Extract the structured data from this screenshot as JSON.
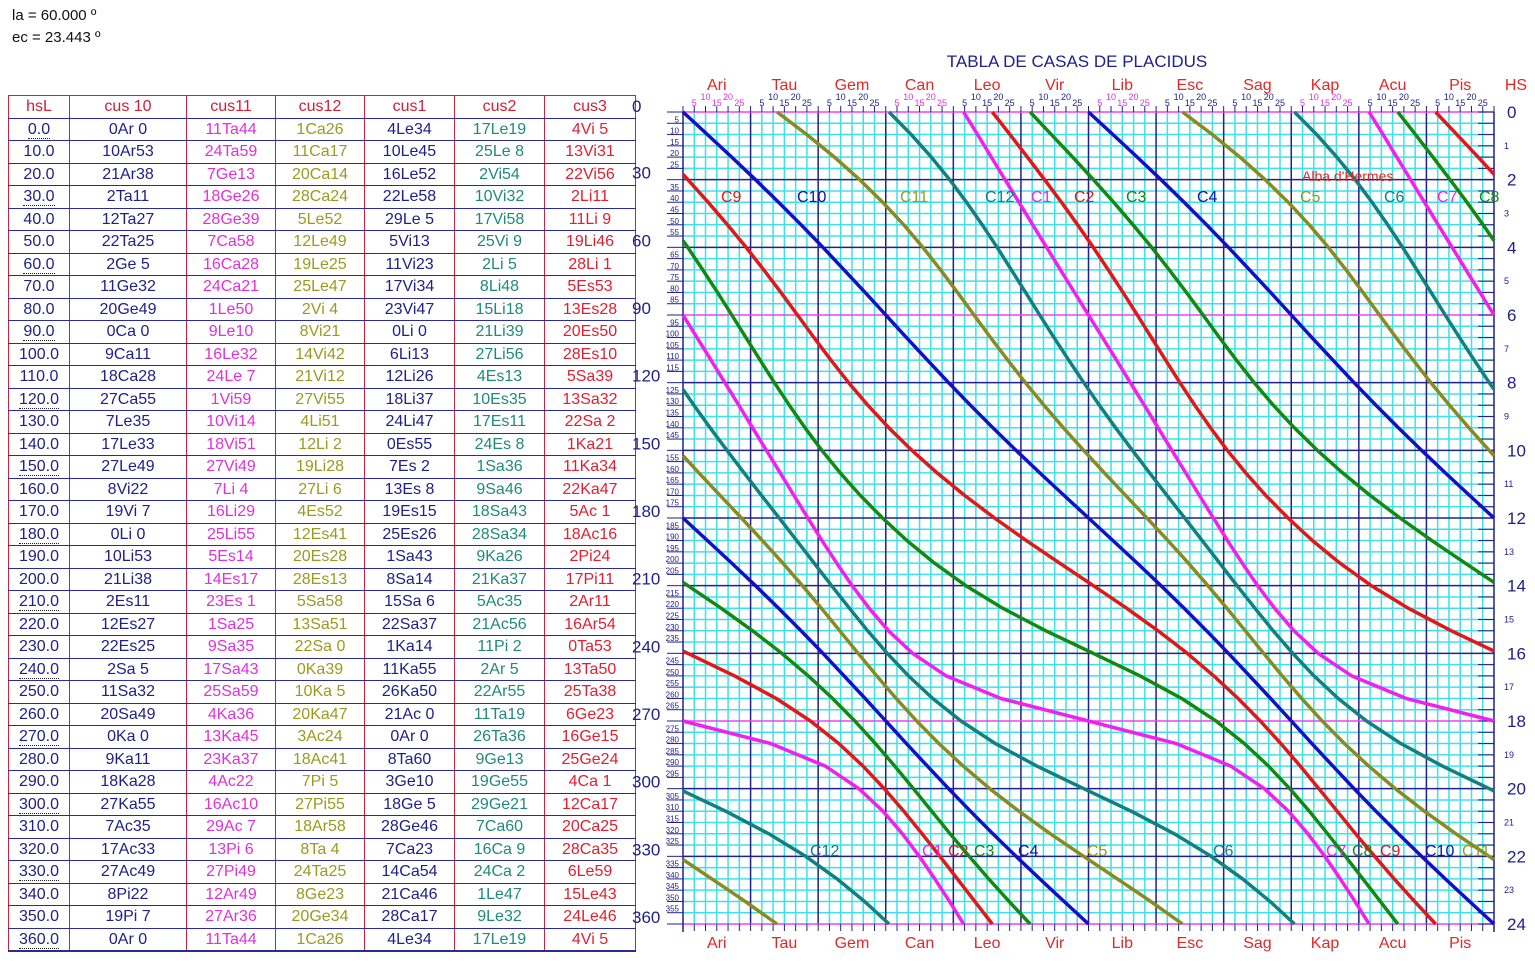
{
  "params": {
    "latitude": "la = 60.000 º",
    "obliquity": "ec = 23.443 º"
  },
  "table": {
    "headers": [
      "hsL",
      "cus 10",
      "cus11",
      "cus12",
      "cus1",
      "cus2",
      "cus3"
    ],
    "column_colors": [
      "#20208a",
      "#20208a",
      "#e030d8",
      "#9a9a20",
      "#20208a",
      "#208a7a",
      "#e02030"
    ],
    "rows": [
      [
        "0.0",
        "0Ar 0",
        "11Ta44",
        "1Ca26",
        "4Le34",
        "17Le19",
        "4Vi 5"
      ],
      [
        "10.0",
        "10Ar53",
        "24Ta59",
        "11Ca17",
        "10Le45",
        "25Le 8",
        "13Vi31"
      ],
      [
        "20.0",
        "21Ar38",
        "7Ge13",
        "20Ca14",
        "16Le52",
        "2Vi54",
        "22Vi56"
      ],
      [
        "30.0",
        "2Ta11",
        "18Ge26",
        "28Ca24",
        "22Le58",
        "10Vi32",
        "2Li11"
      ],
      [
        "40.0",
        "12Ta27",
        "28Ge39",
        "5Le52",
        "29Le 5",
        "17Vi58",
        "11Li 9"
      ],
      [
        "50.0",
        "22Ta25",
        "7Ca58",
        "12Le49",
        "5Vi13",
        "25Vi 9",
        "19Li46"
      ],
      [
        "60.0",
        "2Ge 5",
        "16Ca28",
        "19Le25",
        "11Vi23",
        "2Li 5",
        "28Li 1"
      ],
      [
        "70.0",
        "11Ge32",
        "24Ca21",
        "25Le47",
        "17Vi34",
        "8Li48",
        "5Es53"
      ],
      [
        "80.0",
        "20Ge49",
        "1Le50",
        "2Vi 4",
        "23Vi47",
        "15Li18",
        "13Es28"
      ],
      [
        "90.0",
        "0Ca 0",
        "9Le10",
        "8Vi21",
        "0Li 0",
        "21Li39",
        "20Es50"
      ],
      [
        "100.0",
        "9Ca11",
        "16Le32",
        "14Vi42",
        "6Li13",
        "27Li56",
        "28Es10"
      ],
      [
        "110.0",
        "18Ca28",
        "24Le 7",
        "21Vi12",
        "12Li26",
        "4Es13",
        "5Sa39"
      ],
      [
        "120.0",
        "27Ca55",
        "1Vi59",
        "27Vi55",
        "18Li37",
        "10Es35",
        "13Sa32"
      ],
      [
        "130.0",
        "7Le35",
        "10Vi14",
        "4Li51",
        "24Li47",
        "17Es11",
        "22Sa 2"
      ],
      [
        "140.0",
        "17Le33",
        "18Vi51",
        "12Li 2",
        "0Es55",
        "24Es 8",
        "1Ka21"
      ],
      [
        "150.0",
        "27Le49",
        "27Vi49",
        "19Li28",
        "7Es 2",
        "1Sa36",
        "11Ka34"
      ],
      [
        "160.0",
        "8Vi22",
        "7Li 4",
        "27Li 6",
        "13Es 8",
        "9Sa46",
        "22Ka47"
      ],
      [
        "170.0",
        "19Vi 7",
        "16Li29",
        "4Es52",
        "19Es15",
        "18Sa43",
        "5Ac 1"
      ],
      [
        "180.0",
        "0Li 0",
        "25Li55",
        "12Es41",
        "25Es26",
        "28Sa34",
        "18Ac16"
      ],
      [
        "190.0",
        "10Li53",
        "5Es14",
        "20Es28",
        "1Sa43",
        "9Ka26",
        "2Pi24"
      ],
      [
        "200.0",
        "21Li38",
        "14Es17",
        "28Es13",
        "8Sa14",
        "21Ka37",
        "17Pi11"
      ],
      [
        "210.0",
        "2Es11",
        "23Es 1",
        "5Sa58",
        "15Sa 6",
        "5Ac35",
        "2Ar11"
      ],
      [
        "220.0",
        "12Es27",
        "1Sa25",
        "13Sa51",
        "22Sa37",
        "21Ac56",
        "16Ar54"
      ],
      [
        "230.0",
        "22Es25",
        "9Sa35",
        "22Sa 0",
        "1Ka14",
        "11Pi 2",
        "0Ta53"
      ],
      [
        "240.0",
        "2Sa 5",
        "17Sa43",
        "0Ka39",
        "11Ka55",
        "2Ar 5",
        "13Ta50"
      ],
      [
        "250.0",
        "11Sa32",
        "25Sa59",
        "10Ka 5",
        "26Ka50",
        "22Ar55",
        "25Ta38"
      ],
      [
        "260.0",
        "20Sa49",
        "4Ka36",
        "20Ka47",
        "21Ac 0",
        "11Ta19",
        "6Ge23"
      ],
      [
        "270.0",
        "0Ka 0",
        "13Ka45",
        "3Ac24",
        "0Ar 0",
        "26Ta36",
        "16Ge15"
      ],
      [
        "280.0",
        "9Ka11",
        "23Ka37",
        "18Ac41",
        "8Ta60",
        "9Ge13",
        "25Ge24"
      ],
      [
        "290.0",
        "18Ka28",
        "4Ac22",
        "7Pi 5",
        "3Ge10",
        "19Ge55",
        "4Ca 1"
      ],
      [
        "300.0",
        "27Ka55",
        "16Ac10",
        "27Pi55",
        "18Ge 5",
        "29Ge21",
        "12Ca17"
      ],
      [
        "310.0",
        "7Ac35",
        "29Ac 7",
        "18Ar58",
        "28Ge46",
        "7Ca60",
        "20Ca25"
      ],
      [
        "320.0",
        "17Ac33",
        "13Pi 6",
        "8Ta 4",
        "7Ca23",
        "16Ca 9",
        "28Ca35"
      ],
      [
        "330.0",
        "27Ac49",
        "27Pi49",
        "24Ta25",
        "14Ca54",
        "24Ca 2",
        "6Le59"
      ],
      [
        "340.0",
        "8Pi22",
        "12Ar49",
        "8Ge23",
        "21Ca46",
        "1Le47",
        "15Le43"
      ],
      [
        "350.0",
        "19Pi 7",
        "27Ar36",
        "20Ge34",
        "28Ca17",
        "9Le32",
        "24Le46"
      ],
      [
        "360.0",
        "0Ar 0",
        "11Ta44",
        "1Ca26",
        "4Le34",
        "17Le19",
        "4Vi 5"
      ]
    ]
  },
  "chart_data": {
    "type": "line",
    "title": "TABLA DE CASAS DE PLACIDUS",
    "x_signs": [
      "Ari",
      "Tau",
      "Gem",
      "Can",
      "Leo",
      "Vir",
      "Lib",
      "Esc",
      "Sag",
      "Kap",
      "Acu",
      "Pis"
    ],
    "sign_codes": [
      "Ar",
      "Ta",
      "Ge",
      "Ca",
      "Le",
      "Vi",
      "Li",
      "Es",
      "Sa",
      "Ka",
      "Ac",
      "Pi"
    ],
    "x_degree_ticks": [
      "5",
      "10",
      "15",
      "20",
      "25"
    ],
    "xlim": [
      0,
      360
    ],
    "y_left_label": "",
    "y_left_major": [
      "0",
      "30",
      "60",
      "90",
      "120",
      "150",
      "180",
      "210",
      "240",
      "270",
      "300",
      "330",
      "360"
    ],
    "ylim": [
      0,
      360
    ],
    "y_right_label": "HS",
    "y_right_hours": [
      "0",
      "1",
      "2",
      "3",
      "4",
      "5",
      "6",
      "7",
      "8",
      "9",
      "10",
      "11",
      "12",
      "13",
      "14",
      "15",
      "16",
      "17",
      "18",
      "19",
      "20",
      "21",
      "22",
      "23",
      "24"
    ],
    "grid": true,
    "highlight_hsl": [
      0,
      90,
      270,
      360
    ],
    "annotation": "Alba d'Hermes",
    "series": [
      {
        "name": "C10",
        "column": 1,
        "opposite": false,
        "color": "#1010c8"
      },
      {
        "name": "C11",
        "column": 2,
        "opposite": false,
        "color": "#8a8a20"
      },
      {
        "name": "C12",
        "column": 3,
        "opposite": false,
        "color": "#108080"
      },
      {
        "name": "C1",
        "column": 4,
        "opposite": false,
        "color": "#f020f0"
      },
      {
        "name": "C2",
        "column": 5,
        "opposite": false,
        "color": "#e01818"
      },
      {
        "name": "C3",
        "column": 6,
        "opposite": false,
        "color": "#108a10"
      },
      {
        "name": "C4",
        "column": 1,
        "opposite": true,
        "color": "#1010c8"
      },
      {
        "name": "C5",
        "column": 2,
        "opposite": true,
        "color": "#8a8a20"
      },
      {
        "name": "C6",
        "column": 3,
        "opposite": true,
        "color": "#108080"
      },
      {
        "name": "C7",
        "column": 4,
        "opposite": true,
        "color": "#f020f0"
      },
      {
        "name": "C8",
        "column": 5,
        "opposite": true,
        "color": "#108a10"
      },
      {
        "name": "C9",
        "column": 6,
        "opposite": true,
        "color": "#e01818"
      }
    ],
    "labels_top": [
      {
        "text": "C9",
        "color": "#e01818"
      },
      {
        "text": "C10",
        "color": "#1010a0"
      },
      {
        "text": "C11",
        "color": "#9a9a20"
      },
      {
        "text": "C12",
        "color": "#108080"
      },
      {
        "text": "C1",
        "color": "#f020f0"
      },
      {
        "text": "C2",
        "color": "#e01818"
      },
      {
        "text": "C3",
        "color": "#108a10"
      },
      {
        "text": "C4",
        "color": "#1010a0"
      },
      {
        "text": "C5",
        "color": "#9a9a20"
      },
      {
        "text": "C6",
        "color": "#108080"
      },
      {
        "text": "C7",
        "color": "#f020f0"
      },
      {
        "text": "C8",
        "color": "#108a10"
      }
    ],
    "labels_bottom": [
      {
        "text": "C12",
        "color": "#108080"
      },
      {
        "text": "C1",
        "color": "#f020f0"
      },
      {
        "text": "C2",
        "color": "#e01818"
      },
      {
        "text": "C3",
        "color": "#108a10"
      },
      {
        "text": "C4",
        "color": "#1010a0"
      },
      {
        "text": "C5",
        "color": "#9a9a20"
      },
      {
        "text": "C6",
        "color": "#108080"
      },
      {
        "text": "C7",
        "color": "#f020f0"
      },
      {
        "text": "C8",
        "color": "#108a10"
      },
      {
        "text": "C9",
        "color": "#e01818"
      },
      {
        "text": "C10",
        "color": "#1010a0"
      },
      {
        "text": "C11",
        "color": "#9a9a20"
      }
    ]
  }
}
